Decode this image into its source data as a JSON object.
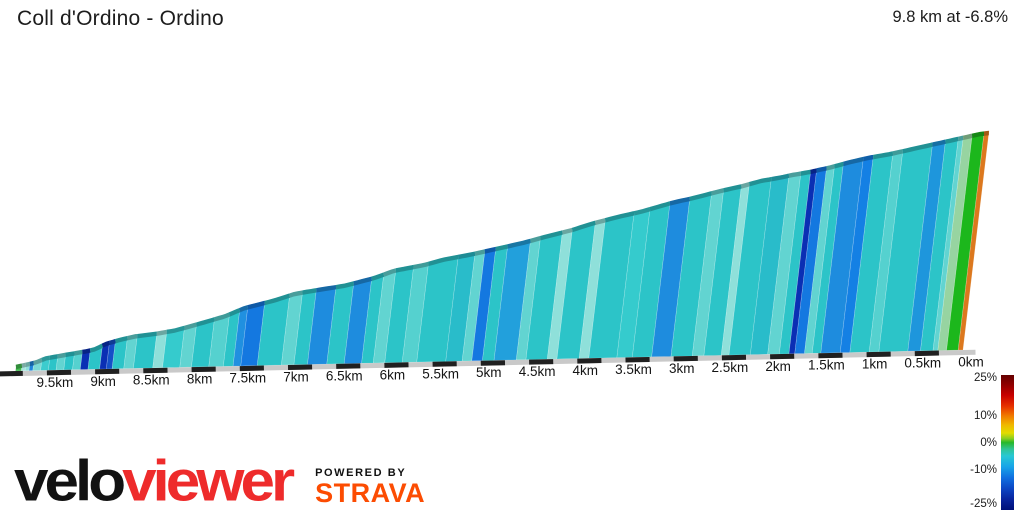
{
  "header": {
    "title": "Coll d'Ordino - Ordino",
    "summary": "9.8 km at -6.8%"
  },
  "footer": {
    "logo_part1": "velo",
    "logo_part2": "viewer",
    "logo_color1": "#121212",
    "logo_color2": "#EE2B2B",
    "powered_by": "POWERED BY",
    "strava": "STRAVA",
    "strava_color": "#FC4C02"
  },
  "legend": {
    "labels": [
      "25%",
      "10%",
      "0%",
      "-10%",
      "-25%"
    ],
    "values": [
      25,
      10,
      0,
      -10,
      -25
    ],
    "colormap_stops": [
      {
        "p": 0,
        "c": "#640000"
      },
      {
        "p": 7,
        "c": "#8E0000"
      },
      {
        "p": 15,
        "c": "#C80000"
      },
      {
        "p": 23,
        "c": "#E63000"
      },
      {
        "p": 30,
        "c": "#F07800"
      },
      {
        "p": 37,
        "c": "#F0B800"
      },
      {
        "p": 43,
        "c": "#E2DC00"
      },
      {
        "p": 47,
        "c": "#8CCE20"
      },
      {
        "p": 50,
        "c": "#28B828"
      },
      {
        "p": 55,
        "c": "#30C496"
      },
      {
        "p": 60,
        "c": "#28C8D4"
      },
      {
        "p": 68,
        "c": "#18A4E8"
      },
      {
        "p": 76,
        "c": "#1070E0"
      },
      {
        "p": 84,
        "c": "#0C46C4"
      },
      {
        "p": 92,
        "c": "#08249E"
      },
      {
        "p": 100,
        "c": "#001078"
      }
    ]
  },
  "chart_data": {
    "type": "area",
    "title": "Coll d'Ordino - Ordino",
    "subtitle": "9.8 km at -6.8%",
    "x_unit": "km",
    "x_range": [
      9.8,
      0
    ],
    "distance_km": 9.8,
    "avg_gradient_pct": -6.8,
    "grid": false,
    "legend_position": "bottom-right",
    "ticks": [
      {
        "d": 9.5,
        "label": "9.5km"
      },
      {
        "d": 9.0,
        "label": "9km"
      },
      {
        "d": 8.5,
        "label": "8.5km"
      },
      {
        "d": 8.0,
        "label": "8km"
      },
      {
        "d": 7.5,
        "label": "7.5km"
      },
      {
        "d": 7.0,
        "label": "7km"
      },
      {
        "d": 6.5,
        "label": "6.5km"
      },
      {
        "d": 6.0,
        "label": "6km"
      },
      {
        "d": 5.5,
        "label": "5.5km"
      },
      {
        "d": 5.0,
        "label": "5km"
      },
      {
        "d": 4.5,
        "label": "4.5km"
      },
      {
        "d": 4.0,
        "label": "4km"
      },
      {
        "d": 3.5,
        "label": "3.5km"
      },
      {
        "d": 3.0,
        "label": "3km"
      },
      {
        "d": 2.5,
        "label": "2.5km"
      },
      {
        "d": 2.0,
        "label": "2km"
      },
      {
        "d": 1.5,
        "label": "1.5km"
      },
      {
        "d": 1.0,
        "label": "1km"
      },
      {
        "d": 0.5,
        "label": "0.5km"
      },
      {
        "d": 0,
        "label": "0km"
      }
    ],
    "profile_rel_height": [
      [
        9.8,
        6
      ],
      [
        9.6,
        10
      ],
      [
        9.5,
        14
      ],
      [
        9.3,
        17
      ],
      [
        9.1,
        20
      ],
      [
        9.0,
        22
      ],
      [
        8.9,
        27
      ],
      [
        8.75,
        31
      ],
      [
        8.6,
        34
      ],
      [
        8.4,
        36
      ],
      [
        8.2,
        39
      ],
      [
        8.0,
        44
      ],
      [
        7.7,
        52
      ],
      [
        7.5,
        60
      ],
      [
        7.2,
        67
      ],
      [
        7.0,
        73
      ],
      [
        6.8,
        76
      ],
      [
        6.5,
        80
      ],
      [
        6.2,
        87
      ],
      [
        6.0,
        94
      ],
      [
        5.7,
        99
      ],
      [
        5.5,
        104
      ],
      [
        5.2,
        109
      ],
      [
        5.0,
        113
      ],
      [
        4.7,
        119
      ],
      [
        4.5,
        124
      ],
      [
        4.2,
        131
      ],
      [
        4.0,
        137
      ],
      [
        3.7,
        144
      ],
      [
        3.5,
        148
      ],
      [
        3.2,
        156
      ],
      [
        3.0,
        160
      ],
      [
        2.7,
        167
      ],
      [
        2.5,
        171
      ],
      [
        2.3,
        176
      ],
      [
        2.1,
        179
      ],
      [
        2.0,
        181
      ],
      [
        1.8,
        184
      ],
      [
        1.6,
        188
      ],
      [
        1.4,
        193
      ],
      [
        1.2,
        197
      ],
      [
        1.0,
        200
      ],
      [
        0.8,
        204
      ],
      [
        0.6,
        208
      ],
      [
        0.4,
        212
      ],
      [
        0.25,
        215
      ],
      [
        0.1,
        218
      ],
      [
        0.0,
        219
      ]
    ],
    "gradient_bands": [
      [
        9.8,
        9.74,
        "#44BE50"
      ],
      [
        9.74,
        9.7,
        "#A7E6DE"
      ],
      [
        9.7,
        9.66,
        "#8FE0DA"
      ],
      [
        9.66,
        9.62,
        "#1E86DC"
      ],
      [
        9.62,
        9.54,
        "#7ADAD6"
      ],
      [
        9.54,
        9.46,
        "#3CCCCE"
      ],
      [
        9.46,
        9.38,
        "#2CC4C8"
      ],
      [
        9.38,
        9.3,
        "#62D4D1"
      ],
      [
        9.3,
        9.21,
        "#2CC4C8"
      ],
      [
        9.21,
        9.13,
        "#55D1CF"
      ],
      [
        9.13,
        9.05,
        "#0A2FB4"
      ],
      [
        9.05,
        8.93,
        "#2CC4C8"
      ],
      [
        8.93,
        8.86,
        "#0A2FB4"
      ],
      [
        8.86,
        8.8,
        "#1450C8"
      ],
      [
        8.8,
        8.68,
        "#2CC4C8"
      ],
      [
        8.68,
        8.58,
        "#62D4D1"
      ],
      [
        8.58,
        8.38,
        "#2CC4C8"
      ],
      [
        8.38,
        8.28,
        "#8FE0DA"
      ],
      [
        8.28,
        8.1,
        "#35CBCD"
      ],
      [
        8.1,
        7.98,
        "#62D4D1"
      ],
      [
        7.98,
        7.8,
        "#2CC4C8"
      ],
      [
        7.8,
        7.65,
        "#55D1CF"
      ],
      [
        7.65,
        7.55,
        "#2CC4C8"
      ],
      [
        7.55,
        7.47,
        "#2090E0"
      ],
      [
        7.47,
        7.3,
        "#1478E0"
      ],
      [
        7.3,
        7.05,
        "#2CC4C8"
      ],
      [
        7.05,
        6.92,
        "#62D4D1"
      ],
      [
        6.92,
        6.78,
        "#2CC4C8"
      ],
      [
        6.78,
        6.58,
        "#1E8CDE"
      ],
      [
        6.58,
        6.4,
        "#2CC4C8"
      ],
      [
        6.4,
        6.22,
        "#1E8CDE"
      ],
      [
        6.22,
        6.1,
        "#2CC4C8"
      ],
      [
        6.1,
        5.98,
        "#62D4D1"
      ],
      [
        5.98,
        5.8,
        "#2CC4C8"
      ],
      [
        5.8,
        5.65,
        "#55D1CF"
      ],
      [
        5.65,
        5.35,
        "#2CC4C8"
      ],
      [
        5.35,
        5.18,
        "#29BCCA"
      ],
      [
        5.18,
        5.08,
        "#62D4D1"
      ],
      [
        5.08,
        4.97,
        "#1478E0"
      ],
      [
        4.97,
        4.85,
        "#2CC4C8"
      ],
      [
        4.85,
        4.62,
        "#22A0DC"
      ],
      [
        4.62,
        4.52,
        "#62D4D1"
      ],
      [
        4.52,
        4.3,
        "#2CC4C8"
      ],
      [
        4.3,
        4.2,
        "#8FE0DA"
      ],
      [
        4.2,
        3.97,
        "#2CC4C8"
      ],
      [
        3.97,
        3.87,
        "#8FE0DA"
      ],
      [
        3.87,
        3.58,
        "#2CC4C8"
      ],
      [
        3.58,
        3.42,
        "#35CBCD"
      ],
      [
        3.42,
        3.22,
        "#2CC4C8"
      ],
      [
        3.22,
        3.02,
        "#1E8CDE"
      ],
      [
        3.02,
        2.8,
        "#2CC4C8"
      ],
      [
        2.8,
        2.68,
        "#62D4D1"
      ],
      [
        2.68,
        2.5,
        "#2CC4C8"
      ],
      [
        2.5,
        2.42,
        "#8FE0DA"
      ],
      [
        2.42,
        2.2,
        "#2CC4C8"
      ],
      [
        2.2,
        2.02,
        "#29BCCA"
      ],
      [
        2.02,
        1.9,
        "#62D4D1"
      ],
      [
        1.9,
        1.8,
        "#2CC4C8"
      ],
      [
        1.8,
        1.74,
        "#0A2FB4"
      ],
      [
        1.74,
        1.64,
        "#1478E0"
      ],
      [
        1.64,
        1.56,
        "#62D4D1"
      ],
      [
        1.56,
        1.47,
        "#2CC4C8"
      ],
      [
        1.47,
        1.27,
        "#1E8CDE"
      ],
      [
        1.27,
        1.17,
        "#1480E4"
      ],
      [
        1.17,
        0.97,
        "#2CC4C8"
      ],
      [
        0.97,
        0.87,
        "#55D1CF"
      ],
      [
        0.87,
        0.57,
        "#2CC4C8"
      ],
      [
        0.57,
        0.44,
        "#1E96DC"
      ],
      [
        0.44,
        0.31,
        "#2CC4C8"
      ],
      [
        0.31,
        0.26,
        "#62D4D1"
      ],
      [
        0.26,
        0.17,
        "#97D4A1"
      ],
      [
        0.17,
        0.05,
        "#1CB71C"
      ],
      [
        0.05,
        0.0,
        "#DC781E"
      ]
    ],
    "axis_colors": {
      "ruler_silver": "#C9C9C9",
      "ruler_black": "#202020",
      "label_color": "#141414"
    }
  }
}
